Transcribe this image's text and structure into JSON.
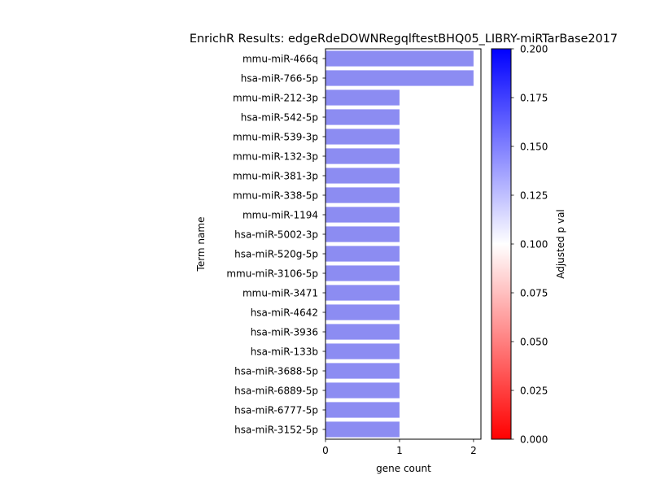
{
  "chart_data": {
    "type": "bar",
    "orientation": "horizontal",
    "title": "EnrichR Results: edgeRdeDOWNRegqlftestBHQ05_LIBRY-miRTarBase2017",
    "xlabel": "gene count",
    "ylabel": "Term name",
    "xlim": [
      0,
      2.1
    ],
    "xticks": [
      "0",
      "1",
      "2"
    ],
    "categories": [
      "mmu-miR-466q",
      "hsa-miR-766-5p",
      "mmu-miR-212-3p",
      "hsa-miR-542-5p",
      "mmu-miR-539-3p",
      "mmu-miR-132-3p",
      "mmu-miR-381-3p",
      "mmu-miR-338-5p",
      "mmu-miR-1194",
      "hsa-miR-5002-3p",
      "hsa-miR-520g-5p",
      "mmu-miR-3106-5p",
      "mmu-miR-3471",
      "hsa-miR-4642",
      "hsa-miR-3936",
      "hsa-miR-133b",
      "hsa-miR-3688-5p",
      "hsa-miR-6889-5p",
      "hsa-miR-6777-5p",
      "hsa-miR-3152-5p"
    ],
    "values": [
      2,
      2,
      1,
      1,
      1,
      1,
      1,
      1,
      1,
      1,
      1,
      1,
      1,
      1,
      1,
      1,
      1,
      1,
      1,
      1
    ],
    "bar_color": "#8c8cf2",
    "grid": false,
    "colorbar": {
      "label": "Adjusted p val",
      "range": [
        0.0,
        0.2
      ],
      "ticks": [
        "0.000",
        "0.025",
        "0.050",
        "0.075",
        "0.100",
        "0.125",
        "0.150",
        "0.175",
        "0.200"
      ],
      "colors": [
        "#ff0000",
        "#ffffff",
        "#0000ff"
      ]
    }
  }
}
